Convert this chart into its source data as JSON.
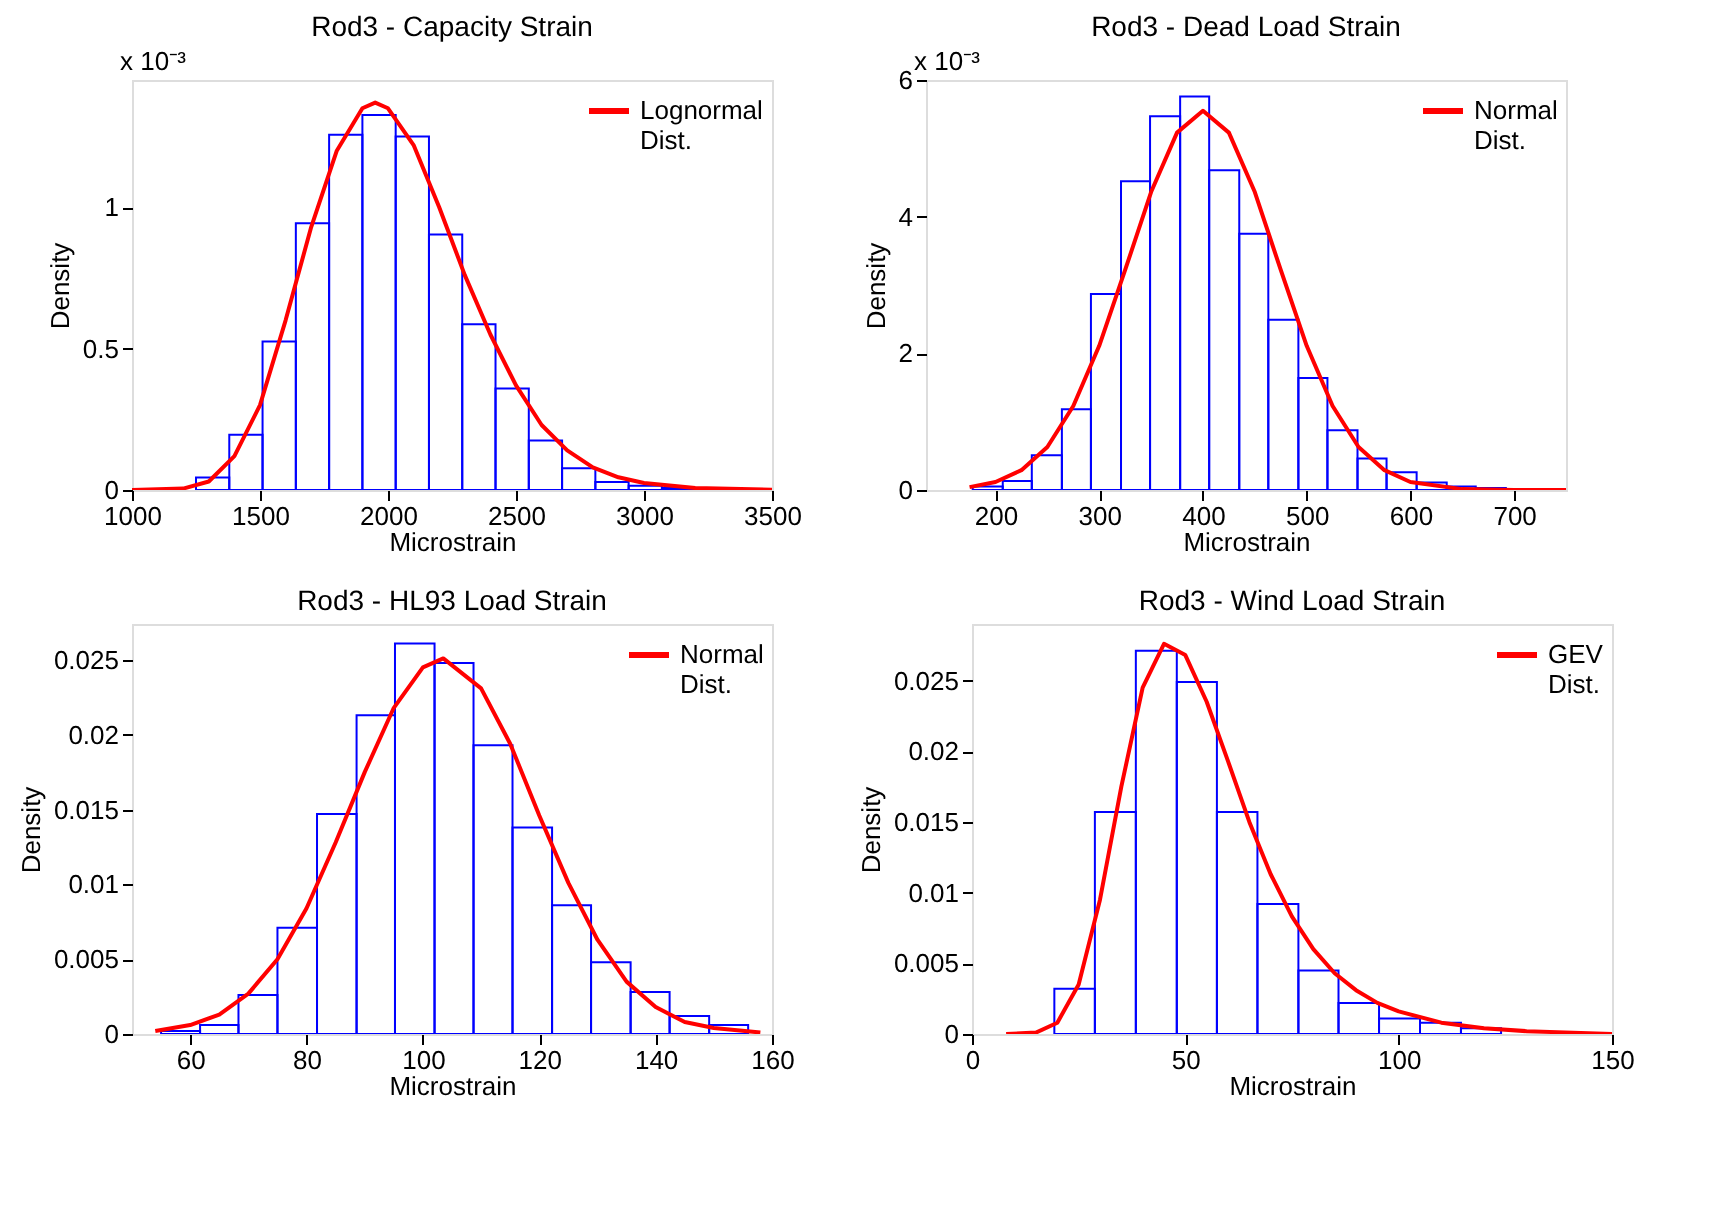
{
  "chart_data": [
    {
      "type": "histogram",
      "title": "Rod3 - Capacity Strain",
      "xlabel": "Microstrain",
      "ylabel": "Density",
      "annotations": [
        "x 10⁻³"
      ],
      "xlim": [
        1000,
        3500
      ],
      "xticks": [
        1000,
        1500,
        2000,
        2500,
        3000,
        3500
      ],
      "ylim": [
        0,
        1.45
      ],
      "yticks": [
        0,
        0.5,
        1
      ],
      "legend": "top right",
      "series": [
        {
          "type": "histogram",
          "color": "#0000ff",
          "bins": [
            1120,
            1250,
            1380,
            1510,
            1640,
            1770,
            1900,
            2030,
            2160,
            2290,
            2420,
            2550,
            2680,
            2810,
            2940,
            3070,
            3200
          ],
          "values": [
            null,
            0.044,
            0.195,
            0.525,
            0.943,
            1.256,
            1.326,
            1.25,
            0.904,
            0.586,
            0.359,
            0.175,
            0.077,
            0.028,
            0.015,
            0.007
          ]
        },
        {
          "type": "line",
          "name": "Lognormal Dist.",
          "color": "#ff0000",
          "x": [
            1000,
            1200,
            1300,
            1400,
            1500,
            1600,
            1700,
            1800,
            1900,
            1950,
            2000,
            2100,
            2200,
            2300,
            2400,
            2500,
            2600,
            2700,
            2800,
            2900,
            3000,
            3200,
            3500
          ],
          "values": [
            0,
            0.005,
            0.03,
            0.12,
            0.3,
            0.6,
            0.93,
            1.2,
            1.35,
            1.37,
            1.35,
            1.22,
            1.0,
            0.76,
            0.55,
            0.37,
            0.23,
            0.14,
            0.08,
            0.045,
            0.025,
            0.007,
            0.001
          ]
        }
      ]
    },
    {
      "type": "histogram",
      "title": "Rod3 - Dead Load Strain",
      "xlabel": "Microstrain",
      "ylabel": "Density",
      "annotations": [
        "x 10⁻³"
      ],
      "xlim": [
        133,
        750
      ],
      "xticks": [
        200,
        300,
        400,
        500,
        600,
        700
      ],
      "ylim": [
        0,
        6
      ],
      "yticks": [
        0,
        2,
        4,
        6
      ],
      "legend": "top right",
      "series": [
        {
          "type": "histogram",
          "color": "#0000ff",
          "bins": [
            178,
            207,
            235,
            264,
            292,
            321,
            349,
            378,
            406,
            435,
            463,
            492,
            520,
            549,
            577,
            606,
            635,
            663,
            692
          ],
          "values": [
            0.05,
            0.13,
            0.51,
            1.18,
            2.87,
            4.52,
            5.47,
            5.76,
            4.68,
            3.75,
            2.49,
            1.64,
            0.875,
            0.46,
            0.26,
            0.11,
            0.05,
            0.03
          ]
        },
        {
          "type": "line",
          "name": "Normal Dist.",
          "color": "#ff0000",
          "x": [
            175,
            200,
            225,
            250,
            275,
            300,
            325,
            350,
            375,
            400,
            425,
            450,
            475,
            500,
            525,
            550,
            575,
            600,
            650,
            700,
            750
          ],
          "values": [
            0.042,
            0.117,
            0.29,
            0.63,
            1.23,
            2.11,
            3.22,
            4.36,
            5.23,
            5.55,
            5.23,
            4.36,
            3.22,
            2.11,
            1.23,
            0.63,
            0.29,
            0.117,
            0.013,
            0,
            0
          ]
        }
      ]
    },
    {
      "type": "histogram",
      "title": "Rod3 - HL93 Load Strain",
      "xlabel": "Microstrain",
      "ylabel": "Density",
      "xlim": [
        50,
        160
      ],
      "xticks": [
        60,
        80,
        100,
        120,
        140,
        160
      ],
      "ylim": [
        0,
        0.0274
      ],
      "yticks": [
        0,
        0.005,
        0.01,
        0.015,
        0.02,
        0.025
      ],
      "legend": "top right",
      "series": [
        {
          "type": "histogram",
          "color": "#0000ff",
          "bins": [
            55,
            61.7,
            68.3,
            75,
            81.8,
            88.6,
            95.2,
            102,
            108.7,
            115.4,
            122.2,
            128.9,
            135.7,
            142.4,
            149.2,
            155.9
          ],
          "values": [
            0.0002,
            0.0006,
            0.0026,
            0.0071,
            0.0147,
            0.0213,
            0.0261,
            0.0248,
            0.0193,
            0.0138,
            0.0086,
            0.0048,
            0.0028,
            0.0012,
            0.0006
          ]
        },
        {
          "type": "line",
          "name": "Normal Dist.",
          "color": "#ff0000",
          "x": [
            54,
            60,
            65,
            70,
            75,
            80,
            85,
            90,
            95,
            100,
            103.5,
            110,
            115,
            120,
            125,
            130,
            135,
            140,
            145,
            150,
            158
          ],
          "values": [
            0.0002,
            0.0006,
            0.0013,
            0.0027,
            0.005,
            0.0084,
            0.0128,
            0.0175,
            0.0218,
            0.0245,
            0.0251,
            0.0231,
            0.0194,
            0.0146,
            0.0101,
            0.0063,
            0.0035,
            0.0018,
            0.0008,
            0.0004,
            0.0001
          ]
        }
      ]
    },
    {
      "type": "histogram",
      "title": "Rod3 - Wind Load Strain",
      "xlabel": "Microstrain",
      "ylabel": "Density",
      "xlim": [
        0,
        150
      ],
      "xticks": [
        0,
        50,
        100,
        150
      ],
      "ylim": [
        0,
        0.029
      ],
      "yticks": [
        0,
        0.005,
        0.01,
        0.015,
        0.02,
        0.025
      ],
      "legend": "top right",
      "series": [
        {
          "type": "histogram",
          "color": "#0000ff",
          "bins": [
            19.3,
            28.8,
            38.4,
            48,
            57.4,
            66.9,
            76.5,
            85.9,
            95.4,
            105,
            114.6,
            124
          ],
          "values": [
            0.0032,
            0.0157,
            0.0271,
            0.0249,
            0.0157,
            0.0092,
            0.0045,
            0.0022,
            0.0011,
            0.0008,
            0.0004
          ]
        },
        {
          "type": "line",
          "name": "GEV Dist.",
          "color": "#ff0000",
          "x": [
            8,
            15,
            20,
            25,
            30,
            35,
            40,
            45,
            50,
            55,
            60,
            65,
            70,
            75,
            80,
            85,
            90,
            95,
            100,
            110,
            120,
            130,
            150
          ],
          "values": [
            0,
            0.0001,
            0.0008,
            0.0035,
            0.0095,
            0.0175,
            0.0245,
            0.0276,
            0.0268,
            0.0235,
            0.0193,
            0.015,
            0.0113,
            0.0083,
            0.006,
            0.0043,
            0.0031,
            0.0022,
            0.0016,
            0.0008,
            0.0004,
            0.0002,
            0
          ]
        }
      ]
    }
  ]
}
